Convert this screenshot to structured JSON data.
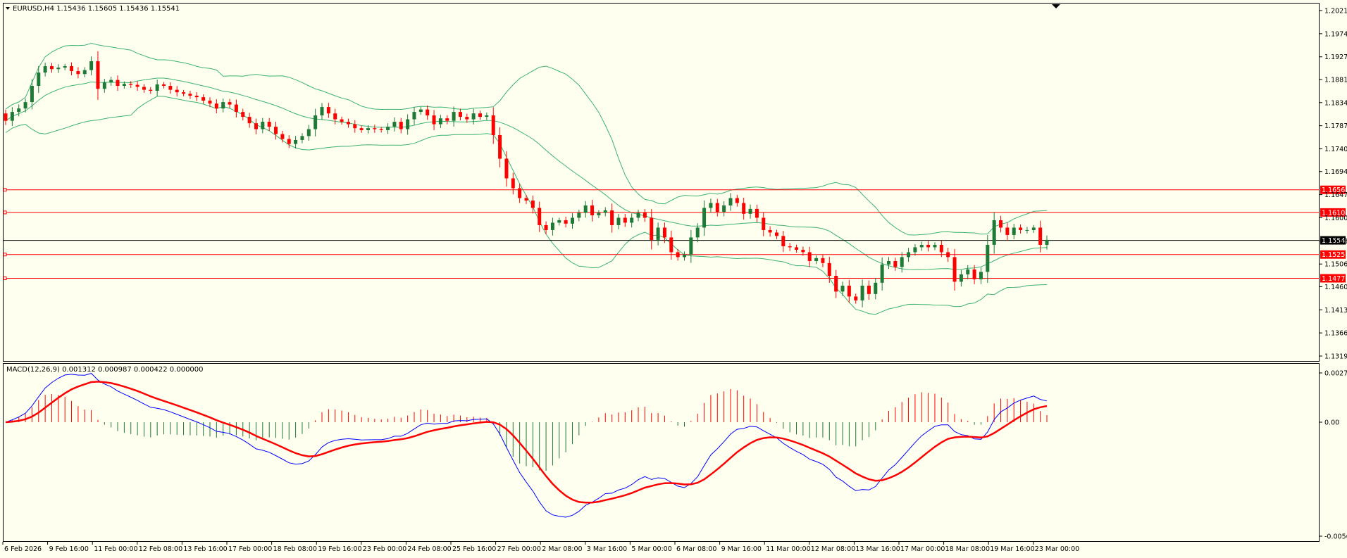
{
  "colors": {
    "background": "#fffff0",
    "bull": "#1e7a36",
    "bear": "#ff0000",
    "bands": "#3cb371",
    "macd_line": "#0000ff",
    "signal_line": "#ff0000",
    "hline": "#ff0000",
    "price_line": "#000000"
  },
  "chart_data": [
    {
      "type": "candlestick",
      "title": "EURUSD,H4  1.15436 1.15605 1.15436 1.15541",
      "y_ticks": [
        "1.20210",
        "1.19740",
        "1.19270",
        "1.18810",
        "1.18340",
        "1.17870",
        "1.17400",
        "1.16940",
        "1.16470",
        "1.16000",
        "1.15530",
        "1.15060",
        "1.14600",
        "1.14130",
        "1.13660",
        "1.13190"
      ],
      "ylim": [
        1.1319,
        1.2021
      ],
      "x_labels": [
        "6 Feb 2026",
        "9 Feb 16:00",
        "11 Feb 00:00",
        "12 Feb 08:00",
        "13 Feb 16:00",
        "17 Feb 00:00",
        "18 Feb 08:00",
        "19 Feb 16:00",
        "23 Feb 00:00",
        "24 Feb 08:00",
        "25 Feb 16:00",
        "27 Feb 00:00",
        "2 Mar 08:00",
        "3 Mar 16:00",
        "5 Mar 00:00",
        "6 Mar 08:00",
        "9 Mar 16:00",
        "11 Mar 00:00",
        "12 Mar 08:00",
        "13 Mar 16:00",
        "17 Mar 00:00",
        "18 Mar 08:00",
        "19 Mar 16:00",
        "23 Mar 00:00"
      ],
      "current_price": "1.15541",
      "horizontal_lines": [
        "1.16568",
        "1.16108",
        "1.15253",
        "1.14770"
      ],
      "close_series": [
        1.1797,
        1.1815,
        1.1822,
        1.1835,
        1.1868,
        1.1895,
        1.1908,
        1.1902,
        1.1905,
        1.1908,
        1.1898,
        1.1892,
        1.19,
        1.1918,
        1.1862,
        1.1875,
        1.188,
        1.1868,
        1.1872,
        1.187,
        1.1866,
        1.186,
        1.1858,
        1.1871,
        1.1868,
        1.186,
        1.1855,
        1.1852,
        1.1848,
        1.1845,
        1.1838,
        1.1832,
        1.1822,
        1.1835,
        1.183,
        1.1815,
        1.1805,
        1.1792,
        1.178,
        1.1795,
        1.1785,
        1.177,
        1.176,
        1.175,
        1.1758,
        1.1766,
        1.178,
        1.1808,
        1.1825,
        1.1812,
        1.18,
        1.1795,
        1.179,
        1.1782,
        1.1778,
        1.1782,
        1.178,
        1.1778,
        1.1785,
        1.1795,
        1.178,
        1.18,
        1.1815,
        1.182,
        1.1808,
        1.179,
        1.1802,
        1.1797,
        1.1815,
        1.1805,
        1.18,
        1.1812,
        1.1805,
        1.1808,
        1.1768,
        1.172,
        1.168,
        1.166,
        1.164,
        1.1635,
        1.162,
        1.1585,
        1.1575,
        1.159,
        1.1595,
        1.1588,
        1.16,
        1.161,
        1.1625,
        1.1605,
        1.161,
        1.1615,
        1.1585,
        1.16,
        1.159,
        1.16,
        1.161,
        1.16,
        1.1555,
        1.158,
        1.156,
        1.153,
        1.152,
        1.1525,
        1.156,
        1.158,
        1.162,
        1.163,
        1.1612,
        1.1625,
        1.164,
        1.163,
        1.1608,
        1.1618,
        1.16,
        1.1575,
        1.157,
        1.1563,
        1.1542,
        1.154,
        1.1535,
        1.153,
        1.1512,
        1.1518,
        1.1508,
        1.1482,
        1.145,
        1.1462,
        1.144,
        1.1432,
        1.1462,
        1.1445,
        1.1468,
        1.1505,
        1.1512,
        1.15,
        1.152,
        1.153,
        1.154,
        1.1545,
        1.154,
        1.1545,
        1.153,
        1.152,
        1.147,
        1.1485,
        1.1495,
        1.1475,
        1.149,
        1.1545,
        1.1595,
        1.158,
        1.1565,
        1.158,
        1.1575,
        1.1575,
        1.158,
        1.1545,
        1.1555
      ]
    },
    {
      "type": "macd",
      "title": "MACD(12,26,9) 0.001312 0.000987 0.000422 0.000000",
      "y_ticks": [
        "0.002748",
        "0.00",
        "-0.005698"
      ],
      "ylim": [
        -0.005698,
        0.002748
      ],
      "zero_label": "0.00"
    }
  ]
}
